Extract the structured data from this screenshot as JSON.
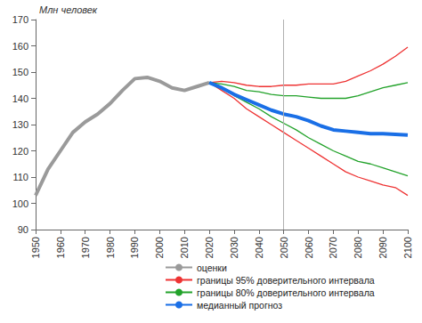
{
  "chart_data": {
    "type": "line",
    "y_label": "Млн человек",
    "x": [
      1950,
      1955,
      1960,
      1965,
      1970,
      1975,
      1980,
      1985,
      1990,
      1995,
      2000,
      2005,
      2010,
      2015,
      2020,
      2025,
      2030,
      2035,
      2040,
      2045,
      2050,
      2055,
      2060,
      2065,
      2070,
      2075,
      2080,
      2085,
      2090,
      2095,
      2100
    ],
    "series": [
      {
        "name": "оценки",
        "color": "#9a9a9a",
        "line_style": "thick",
        "values": [
          103,
          113,
          120,
          127,
          131,
          134,
          138,
          143,
          147.5,
          148,
          146.5,
          144,
          143,
          144.5,
          146,
          null,
          null,
          null,
          null,
          null,
          null,
          null,
          null,
          null,
          null,
          null,
          null,
          null,
          null,
          null,
          null
        ]
      },
      {
        "name": "границы 95% доверительного интервала",
        "color": "#ee3333",
        "line_style": "thin",
        "values": [
          null,
          null,
          null,
          null,
          null,
          null,
          null,
          null,
          null,
          null,
          null,
          null,
          null,
          null,
          146,
          146.5,
          146,
          145,
          144.5,
          144.5,
          145,
          145,
          145.5,
          145.5,
          145.5,
          146.5,
          148.5,
          150.5,
          153,
          156,
          159.5
        ]
      },
      {
        "name": "границы 95% доверительного интервала",
        "color": "#ee3333",
        "line_style": "thin",
        "values": [
          null,
          null,
          null,
          null,
          null,
          null,
          null,
          null,
          null,
          null,
          null,
          null,
          null,
          null,
          146,
          143,
          140,
          136,
          133,
          130,
          127,
          124,
          121,
          118,
          115,
          112,
          110,
          108.5,
          107,
          106,
          103
        ]
      },
      {
        "name": "границы 80% доверительного интервала",
        "color": "#22a22a",
        "line_style": "thin",
        "values": [
          null,
          null,
          null,
          null,
          null,
          null,
          null,
          null,
          null,
          null,
          null,
          null,
          null,
          null,
          146,
          145.5,
          144.5,
          143,
          142.5,
          141.5,
          141,
          141,
          140.5,
          140,
          140,
          140,
          141,
          142.5,
          144,
          145,
          146
        ]
      },
      {
        "name": "границы 80% доверительного интервала",
        "color": "#22a22a",
        "line_style": "thin",
        "values": [
          null,
          null,
          null,
          null,
          null,
          null,
          null,
          null,
          null,
          null,
          null,
          null,
          null,
          null,
          146,
          144,
          141,
          138.5,
          136,
          133,
          130.5,
          128,
          125,
          122.5,
          120,
          118,
          116,
          115,
          113.5,
          112,
          110.5
        ]
      },
      {
        "name": "медианный прогноз",
        "color": "#1a6fe6",
        "line_style": "thick",
        "values": [
          null,
          null,
          null,
          null,
          null,
          null,
          null,
          null,
          null,
          null,
          null,
          null,
          null,
          null,
          146,
          144,
          141.5,
          139.5,
          137.5,
          135.5,
          134,
          133,
          131.5,
          129.5,
          128,
          127.5,
          127,
          126.5,
          126.5,
          126.3,
          126
        ]
      }
    ],
    "vline": 2050,
    "xlim": [
      1950,
      2100
    ],
    "xticks": [
      1950,
      1960,
      1970,
      1980,
      1990,
      2000,
      2010,
      2020,
      2030,
      2040,
      2050,
      2060,
      2070,
      2080,
      2090,
      2100
    ],
    "ylim": [
      90,
      170
    ],
    "yticks": [
      90,
      100,
      110,
      120,
      130,
      140,
      150,
      160,
      170
    ],
    "grid": false,
    "legend": "bottom"
  }
}
